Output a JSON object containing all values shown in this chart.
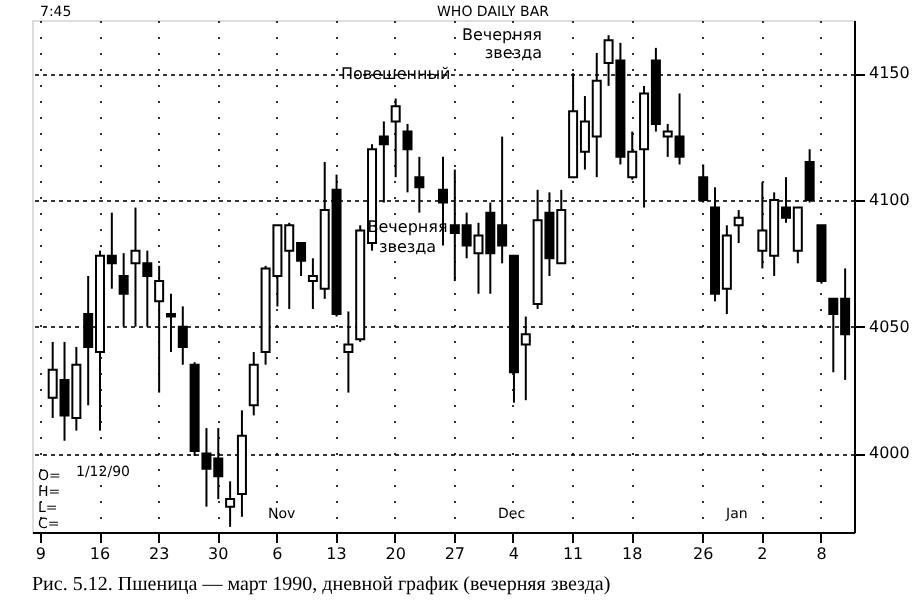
{
  "chart_data": {
    "type": "candlestick",
    "title": "Рис. 5.12. Пшеница — март 1990, дневной график (вечерняя звезда)",
    "color": "#000000",
    "categories": [
      "9",
      null,
      null,
      null,
      null,
      "16",
      null,
      null,
      null,
      null,
      "23",
      null,
      null,
      null,
      null,
      "30",
      null,
      null,
      null,
      null,
      "6",
      null,
      null,
      null,
      null,
      "13",
      null,
      null,
      null,
      null,
      "20",
      null,
      null,
      null,
      null,
      "27",
      null,
      null,
      null,
      null,
      "4",
      null,
      null,
      null,
      null,
      "11",
      null,
      null,
      null,
      null,
      "18",
      null,
      null,
      null,
      null,
      null,
      "26",
      null,
      null,
      null,
      null,
      "2",
      null,
      null,
      null,
      null,
      "8",
      null,
      null
    ],
    "ohlc": [
      null,
      [
        4022,
        4044,
        4014,
        4033
      ],
      [
        4029,
        4044,
        4005,
        4015
      ],
      [
        4014,
        4042,
        4009,
        4035
      ],
      [
        4055,
        4070,
        4019,
        4042
      ],
      [
        4040,
        4080,
        4009,
        4078
      ],
      [
        4078,
        4095,
        4065,
        4075
      ],
      [
        4070,
        4079,
        4050,
        4063
      ],
      [
        4075,
        4097,
        4050,
        4080
      ],
      [
        4075,
        4080,
        4050,
        4070
      ],
      [
        4060,
        4074,
        4024,
        4068
      ],
      [
        4055,
        4063,
        4040,
        4054
      ],
      [
        4050,
        4058,
        4035,
        4042
      ],
      [
        4035,
        4036,
        3999,
        4001
      ],
      [
        4000,
        4010,
        3979,
        3994
      ],
      [
        3998,
        4010,
        3982,
        3991
      ],
      [
        3979,
        3989,
        3971,
        3982
      ],
      [
        3984,
        4017,
        3975,
        4007
      ],
      [
        4019,
        4040,
        4015,
        4035
      ],
      [
        4040,
        4074,
        4035,
        4073
      ],
      [
        4070,
        4090,
        4058,
        4090
      ],
      [
        4080,
        4091,
        4057,
        4090
      ],
      [
        4083,
        4083,
        4070,
        4076
      ],
      [
        4068,
        4077,
        4057,
        4070
      ],
      [
        4065,
        4115,
        4061,
        4096
      ],
      [
        4104,
        4110,
        4054,
        4055
      ],
      [
        4040,
        4056,
        4024,
        4043
      ],
      [
        4045,
        4090,
        4044,
        4088
      ],
      [
        4083,
        4122,
        4080,
        4120
      ],
      [
        4125,
        4131,
        4099,
        4122
      ],
      [
        4131,
        4140,
        4109,
        4137
      ],
      [
        4127,
        4130,
        4103,
        4120
      ],
      [
        4109,
        4117,
        4095,
        4105
      ],
      null,
      [
        4104,
        4117,
        4082,
        4099
      ],
      [
        4090,
        4112,
        4068,
        4087
      ],
      [
        4090,
        4095,
        4077,
        4082
      ],
      [
        4079,
        4091,
        4063,
        4086
      ],
      [
        4095,
        4099,
        4063,
        4079
      ],
      [
        4090,
        4125,
        4075,
        4082
      ],
      [
        4078,
        4078,
        4020,
        4032
      ],
      [
        4043,
        4054,
        4021,
        4047
      ],
      [
        4059,
        4104,
        4057,
        4092
      ],
      [
        4095,
        4103,
        4070,
        4077
      ],
      [
        4075,
        4104,
        4075,
        4096
      ],
      [
        4109,
        4150,
        4109,
        4135
      ],
      [
        4119,
        4141,
        4112,
        4131
      ],
      [
        4125,
        4158,
        4109,
        4147
      ],
      [
        4154,
        4165,
        4145,
        4163
      ],
      [
        4155,
        4162,
        4114,
        4117
      ],
      [
        4109,
        4127,
        4108,
        4119
      ],
      [
        4120,
        4145,
        4097,
        4142
      ],
      [
        4155,
        4160,
        4127,
        4130
      ],
      [
        4125,
        4130,
        4117,
        4127
      ],
      [
        4125,
        4142,
        4114,
        4117
      ],
      null,
      [
        4109,
        4114,
        4099,
        4100
      ],
      [
        4097,
        4105,
        4060,
        4063
      ],
      [
        4065,
        4090,
        4055,
        4086
      ],
      [
        4090,
        4096,
        4083,
        4093
      ],
      null,
      [
        4080,
        4107,
        4073,
        4088
      ],
      [
        4078,
        4103,
        4070,
        4100
      ],
      [
        4097,
        4109,
        4091,
        4093
      ],
      [
        4080,
        4097,
        4075,
        4097
      ],
      [
        4115,
        4120,
        4099,
        4100
      ],
      [
        4090,
        4090,
        4067,
        4068
      ],
      [
        4061,
        4061,
        4032,
        4055
      ],
      [
        4061,
        4073,
        4029,
        4047
      ]
    ],
    "ylim": [
      3969,
      4171
    ],
    "yticks": [
      4000,
      4050,
      4100,
      4150
    ],
    "grid": true,
    "annotations": [
      {
        "text": "Повешенный",
        "x": "20",
        "y": 4140
      },
      {
        "text": "Вечерняя звезда",
        "y": 4103
      },
      "Вечерняя звезда",
      "7:45",
      "WHO DAILY BAR",
      "1/12/90",
      "O=\nH=\nL=\nC=",
      "Nov",
      "Dec",
      "Jan"
    ]
  }
}
